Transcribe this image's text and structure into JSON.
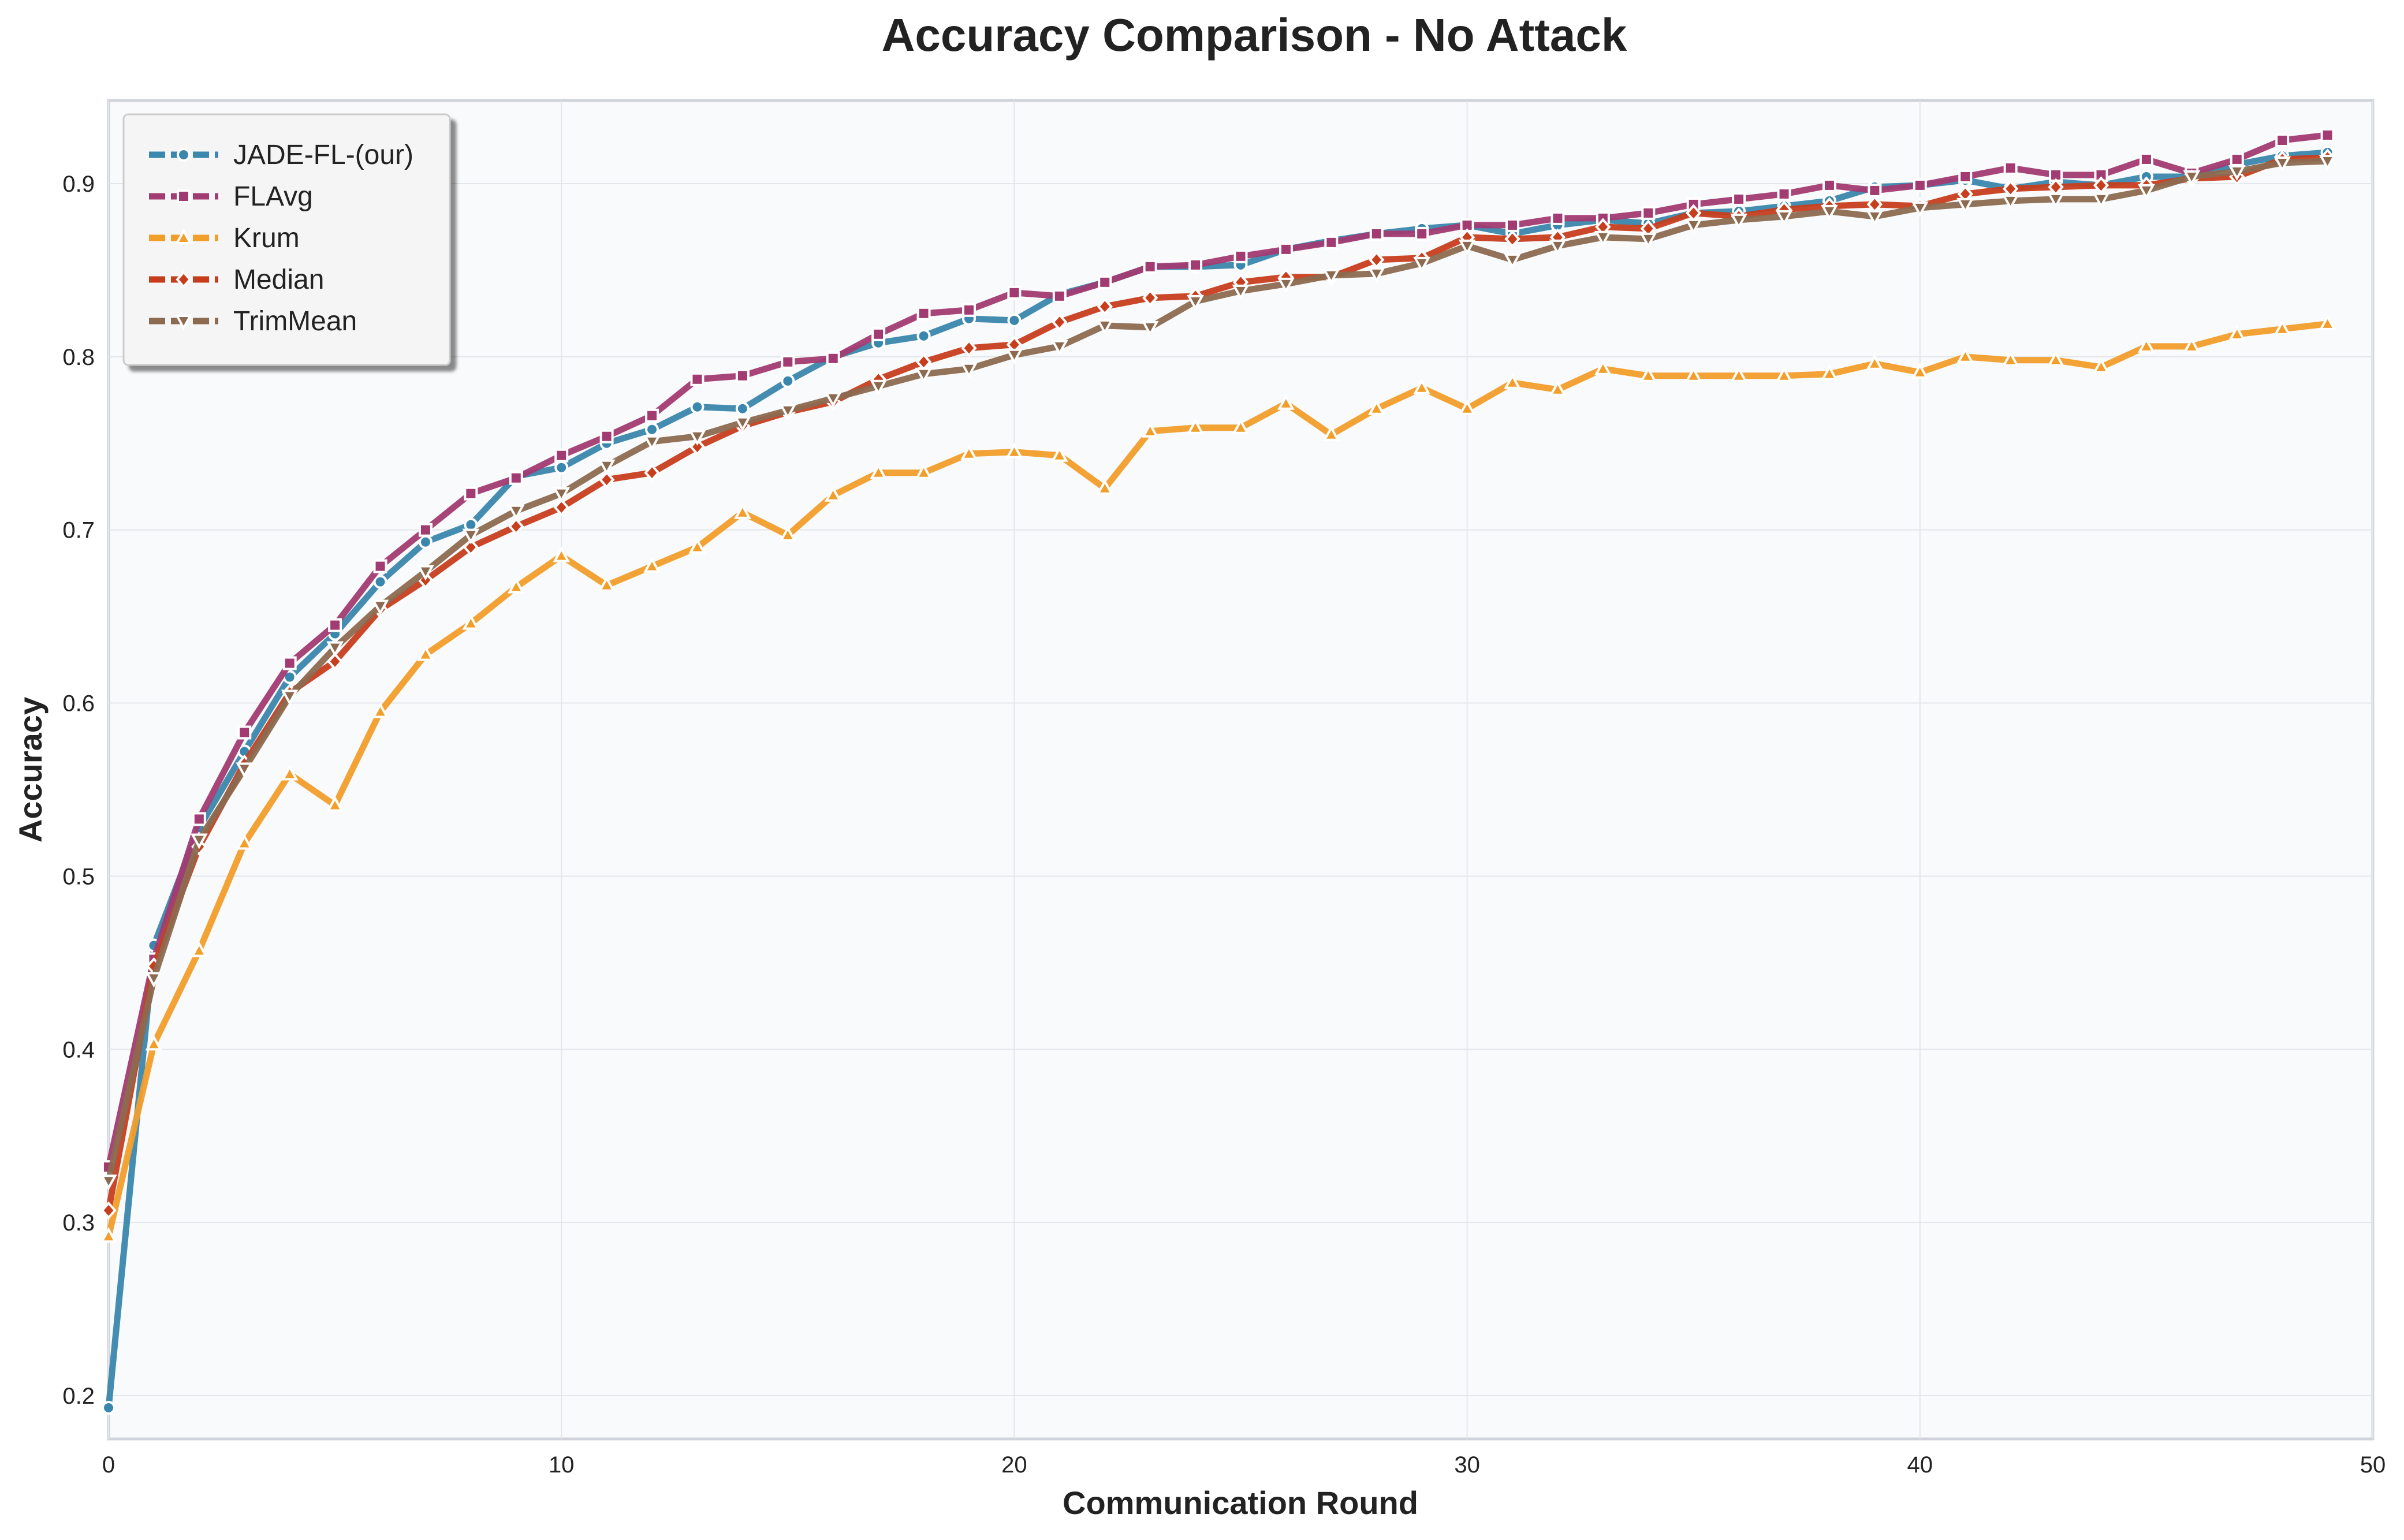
{
  "chart_data": {
    "type": "line",
    "title": "Accuracy Comparison - No Attack",
    "xlabel": "Communication Round",
    "ylabel": "Accuracy",
    "xlim": [
      0,
      50
    ],
    "ylim": [
      0.175,
      0.948
    ],
    "xticks": [
      0,
      10,
      20,
      30,
      40,
      50
    ],
    "yticks": [
      0.2,
      0.3,
      0.4,
      0.5,
      0.6,
      0.7,
      0.8,
      0.9
    ],
    "grid": true,
    "legend": "top-left",
    "x": [
      0,
      1,
      2,
      3,
      4,
      5,
      6,
      7,
      8,
      9,
      10,
      11,
      12,
      13,
      14,
      15,
      16,
      17,
      18,
      19,
      20,
      21,
      22,
      23,
      24,
      25,
      26,
      27,
      28,
      29,
      30,
      31,
      32,
      33,
      34,
      35,
      36,
      37,
      38,
      39,
      40,
      41,
      42,
      43,
      44,
      45,
      46,
      47,
      48,
      49
    ],
    "series": [
      {
        "name": "JADE-FL-(our)",
        "color": "#3a87ad",
        "marker": "circle",
        "values": [
          0.193,
          0.46,
          0.528,
          0.572,
          0.615,
          0.64,
          0.67,
          0.693,
          0.703,
          0.731,
          0.736,
          0.75,
          0.758,
          0.771,
          0.77,
          0.786,
          0.8,
          0.808,
          0.812,
          0.822,
          0.821,
          0.836,
          0.843,
          0.852,
          0.852,
          0.853,
          0.862,
          0.867,
          0.871,
          0.874,
          0.876,
          0.871,
          0.876,
          0.879,
          0.877,
          0.883,
          0.884,
          0.887,
          0.89,
          0.898,
          0.899,
          0.902,
          0.897,
          0.901,
          0.899,
          0.904,
          0.904,
          0.911,
          0.916,
          0.918
        ]
      },
      {
        "name": "FLAvg",
        "color": "#a23b72",
        "marker": "square",
        "values": [
          0.332,
          0.452,
          0.533,
          0.583,
          0.623,
          0.645,
          0.679,
          0.7,
          0.721,
          0.73,
          0.743,
          0.754,
          0.766,
          0.787,
          0.789,
          0.797,
          0.799,
          0.813,
          0.825,
          0.827,
          0.837,
          0.835,
          0.843,
          0.852,
          0.853,
          0.858,
          0.862,
          0.866,
          0.871,
          0.871,
          0.876,
          0.876,
          0.88,
          0.88,
          0.883,
          0.888,
          0.891,
          0.894,
          0.899,
          0.896,
          0.899,
          0.904,
          0.909,
          0.905,
          0.905,
          0.914,
          0.906,
          0.914,
          0.925,
          0.928
        ]
      },
      {
        "name": "Krum",
        "color": "#f29e2b",
        "marker": "triangle-up",
        "values": [
          0.292,
          0.403,
          0.457,
          0.519,
          0.559,
          0.541,
          0.595,
          0.628,
          0.646,
          0.667,
          0.685,
          0.668,
          0.679,
          0.69,
          0.71,
          0.697,
          0.72,
          0.733,
          0.733,
          0.744,
          0.745,
          0.743,
          0.724,
          0.757,
          0.759,
          0.759,
          0.773,
          0.755,
          0.77,
          0.782,
          0.77,
          0.785,
          0.781,
          0.793,
          0.789,
          0.789,
          0.789,
          0.789,
          0.79,
          0.796,
          0.791,
          0.8,
          0.798,
          0.798,
          0.794,
          0.806,
          0.806,
          0.813,
          0.816,
          0.819
        ]
      },
      {
        "name": "Median",
        "color": "#c73e1d",
        "marker": "diamond",
        "values": [
          0.307,
          0.448,
          0.517,
          0.565,
          0.606,
          0.624,
          0.654,
          0.671,
          0.69,
          0.702,
          0.713,
          0.729,
          0.733,
          0.748,
          0.76,
          0.768,
          0.774,
          0.787,
          0.797,
          0.805,
          0.807,
          0.82,
          0.829,
          0.834,
          0.835,
          0.843,
          0.846,
          0.846,
          0.856,
          0.857,
          0.869,
          0.868,
          0.869,
          0.875,
          0.874,
          0.883,
          0.881,
          0.885,
          0.887,
          0.888,
          0.887,
          0.894,
          0.897,
          0.898,
          0.899,
          0.899,
          0.903,
          0.904,
          0.914,
          0.915
        ]
      },
      {
        "name": "TrimMean",
        "color": "#8c6a4f",
        "marker": "triangle-down",
        "values": [
          0.324,
          0.441,
          0.521,
          0.562,
          0.604,
          0.632,
          0.656,
          0.676,
          0.697,
          0.711,
          0.721,
          0.737,
          0.751,
          0.754,
          0.762,
          0.769,
          0.776,
          0.783,
          0.79,
          0.793,
          0.801,
          0.806,
          0.818,
          0.817,
          0.832,
          0.838,
          0.842,
          0.847,
          0.848,
          0.854,
          0.864,
          0.856,
          0.864,
          0.869,
          0.868,
          0.876,
          0.879,
          0.881,
          0.884,
          0.881,
          0.886,
          0.888,
          0.89,
          0.891,
          0.891,
          0.896,
          0.904,
          0.907,
          0.912,
          0.913
        ]
      }
    ]
  }
}
